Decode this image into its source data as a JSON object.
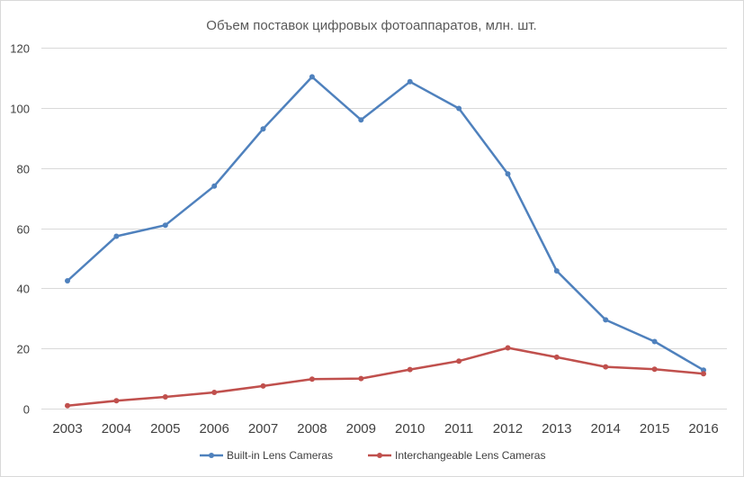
{
  "chart_data": {
    "type": "line",
    "title": "Объем поставок цифровых фотоаппаратов, млн. шт.",
    "xlabel": "",
    "ylabel": "",
    "ylim": [
      0,
      120
    ],
    "yticks": [
      0,
      20,
      40,
      60,
      80,
      100,
      120
    ],
    "grid": true,
    "legend_position": "bottom",
    "categories": [
      "2003",
      "2004",
      "2005",
      "2006",
      "2007",
      "2008",
      "2009",
      "2010",
      "2011",
      "2012",
      "2013",
      "2014",
      "2015",
      "2016"
    ],
    "series": [
      {
        "name": "Built-in Lens Cameras",
        "color": "#4F81BD",
        "values": [
          42.5,
          57.3,
          61.0,
          74.0,
          93.0,
          110.3,
          96.0,
          108.7,
          99.8,
          78.0,
          45.8,
          29.5,
          22.3,
          12.8
        ]
      },
      {
        "name": "Interchangeable Lens Cameras",
        "color": "#C0504D",
        "values": [
          1.0,
          2.6,
          3.9,
          5.4,
          7.5,
          9.8,
          10.0,
          13.0,
          15.8,
          20.2,
          17.1,
          13.9,
          13.1,
          11.6
        ]
      }
    ]
  }
}
